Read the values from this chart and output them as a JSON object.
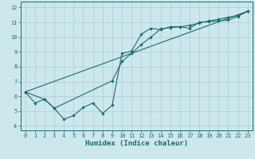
{
  "xlabel": "Humidex (Indice chaleur)",
  "xlim": [
    -0.5,
    23.5
  ],
  "ylim": [
    3.7,
    12.4
  ],
  "xticks": [
    0,
    1,
    2,
    3,
    4,
    5,
    6,
    7,
    8,
    9,
    10,
    11,
    12,
    13,
    14,
    15,
    16,
    17,
    18,
    19,
    20,
    21,
    22,
    23
  ],
  "yticks": [
    4,
    5,
    6,
    7,
    8,
    9,
    10,
    11,
    12
  ],
  "background_color": "#cde8ec",
  "grid_color": "#aacdd4",
  "line_color": "#1a6b6b",
  "line1_x": [
    0,
    1,
    2,
    3,
    4,
    5,
    6,
    7,
    8,
    9,
    10,
    11,
    12,
    13,
    14,
    15,
    16,
    17,
    18,
    19,
    20,
    21,
    22,
    23
  ],
  "line1_y": [
    6.3,
    5.55,
    5.8,
    5.2,
    4.45,
    4.7,
    5.25,
    5.55,
    4.85,
    5.4,
    8.9,
    9.05,
    10.2,
    10.6,
    10.5,
    10.7,
    10.7,
    10.6,
    11.0,
    11.05,
    11.1,
    11.15,
    11.4,
    11.75
  ],
  "line2_x": [
    0,
    2,
    3,
    9,
    10,
    11,
    12,
    13,
    14,
    15,
    16,
    17,
    18,
    19,
    20,
    21,
    22,
    23
  ],
  "line2_y": [
    6.3,
    5.8,
    5.2,
    7.05,
    8.35,
    8.9,
    9.5,
    10.0,
    10.55,
    10.65,
    10.7,
    10.8,
    10.95,
    11.1,
    11.2,
    11.35,
    11.45,
    11.75
  ],
  "line3_x": [
    0,
    23
  ],
  "line3_y": [
    6.3,
    11.75
  ],
  "marker": "D",
  "markersize": 1.8,
  "linewidth": 0.8,
  "label_fontsize": 6.5,
  "tick_fontsize": 5.0
}
